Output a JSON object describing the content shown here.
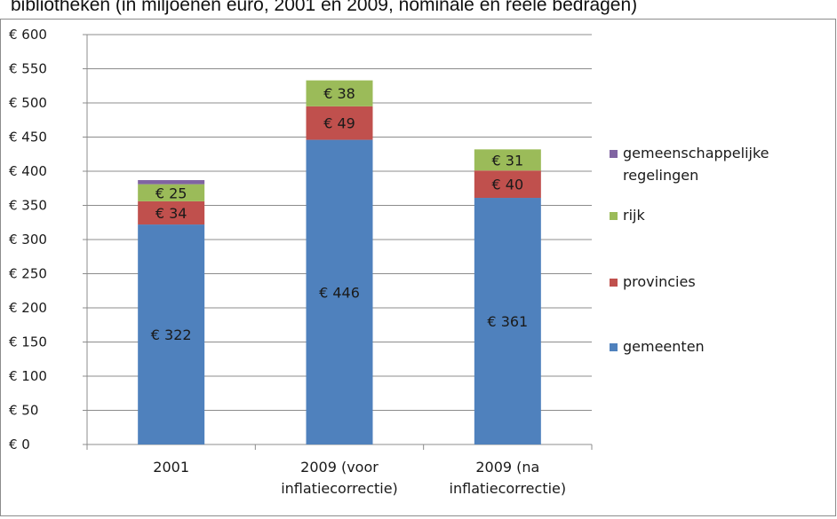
{
  "header": {
    "title": "bibliotheken (in miljoenen euro, 2001 en 2009, nominale en reële bedragen)"
  },
  "chart_data": {
    "type": "bar",
    "stacked": true,
    "categories": [
      "2001",
      "2009 (voor inflatiecorrectie)",
      "2009 (na inflatiecorrectie)"
    ],
    "category_lines": [
      [
        "2001"
      ],
      [
        "2009 (voor",
        "inflatiecorrectie)"
      ],
      [
        "2009 (na",
        "inflatiecorrectie)"
      ]
    ],
    "series": [
      {
        "name": "gemeenten",
        "color": "#4f81bd",
        "values": [
          322,
          446,
          361
        ],
        "labels": [
          "€ 322",
          "€ 446",
          "€ 361"
        ]
      },
      {
        "name": "provincies",
        "color": "#c0504d",
        "values": [
          34,
          49,
          40
        ],
        "labels": [
          "€ 34",
          "€ 49",
          "€ 40"
        ]
      },
      {
        "name": "rijk",
        "color": "#9bbb59",
        "values": [
          25,
          38,
          31
        ],
        "labels": [
          "€ 25",
          "€ 38",
          "€ 31"
        ]
      },
      {
        "name": "gemeenschappelijke regelingen",
        "color": "#8064a2",
        "values": [
          6,
          0,
          0
        ],
        "labels": [
          "",
          "",
          ""
        ]
      }
    ],
    "legend": [
      {
        "lines": [
          "gemeenschappelijke",
          "regelingen"
        ],
        "color": "#8064a2"
      },
      {
        "lines": [
          "rijk"
        ],
        "color": "#9bbb59"
      },
      {
        "lines": [
          "provincies"
        ],
        "color": "#c0504d"
      },
      {
        "lines": [
          "gemeenten"
        ],
        "color": "#4f81bd"
      }
    ],
    "legend_position": "right",
    "y_ticks": [
      0,
      50,
      100,
      150,
      200,
      250,
      300,
      350,
      400,
      450,
      500,
      550,
      600
    ],
    "y_tick_labels": [
      "€ 0",
      "€ 50",
      "€ 100",
      "€ 150",
      "€ 200",
      "€ 250",
      "€ 300",
      "€ 350",
      "€ 400",
      "€ 450",
      "€ 500",
      "€ 550",
      "€ 600"
    ],
    "ylim": [
      0,
      600
    ],
    "grid": true,
    "xlabel": "",
    "ylabel": ""
  }
}
